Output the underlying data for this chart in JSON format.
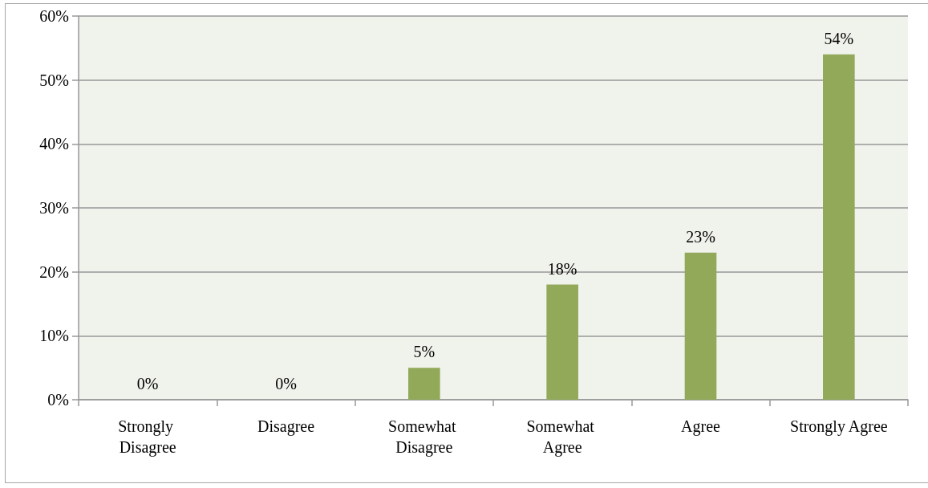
{
  "chart_data": {
    "type": "bar",
    "categories": [
      "Strongly Disagree",
      "Disagree",
      "Somewhat Disagree",
      "Somewhat Agree",
      "Agree",
      "Strongly Agree"
    ],
    "values": [
      0,
      0,
      5,
      18,
      23,
      54
    ],
    "color": "#93a95a",
    "value_labels": [
      "0%",
      "0%",
      "5%",
      "18%",
      "23%",
      "54%"
    ],
    "ylim": [
      0,
      60
    ],
    "yticks": [
      {
        "value": 0,
        "label": "0%"
      },
      {
        "value": 10,
        "label": "10%"
      },
      {
        "value": 20,
        "label": "20%"
      },
      {
        "value": 30,
        "label": "30%"
      },
      {
        "value": 40,
        "label": "40%"
      },
      {
        "value": 50,
        "label": "50%"
      },
      {
        "value": 60,
        "label": "60%"
      }
    ],
    "grid": "y"
  }
}
